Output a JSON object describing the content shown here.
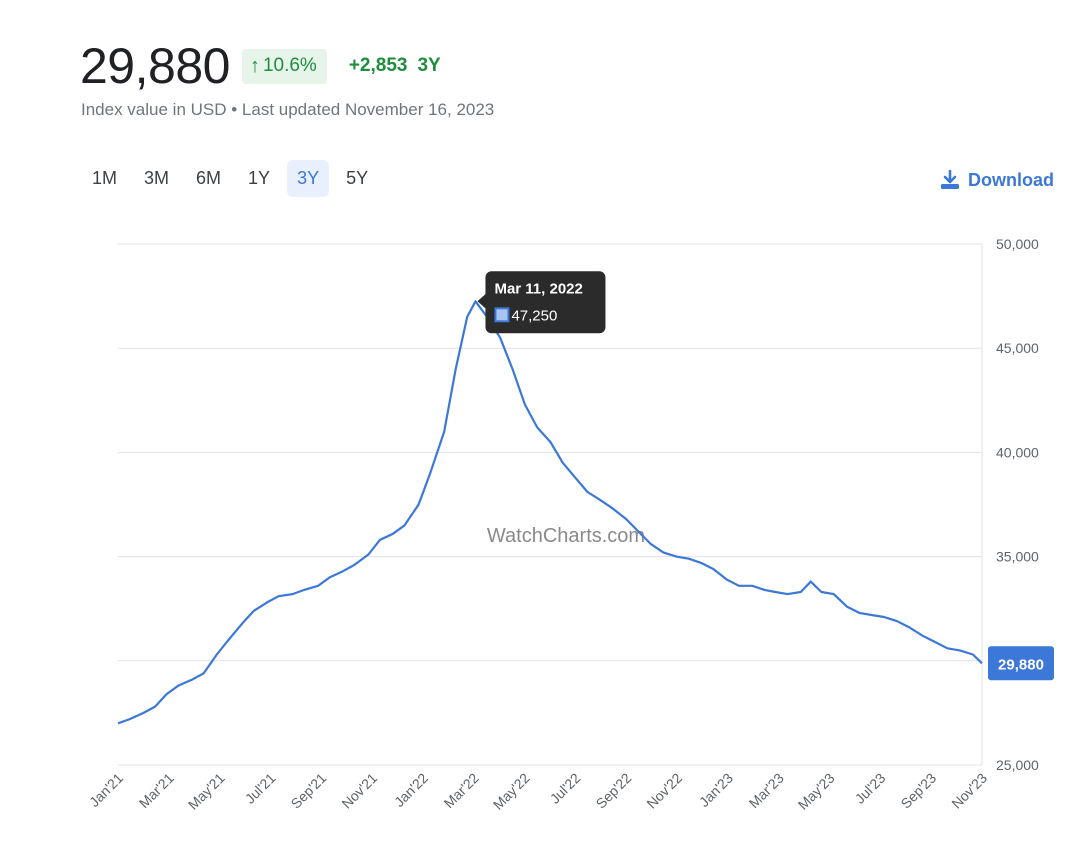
{
  "header": {
    "value": "29,880",
    "change_pct": "10.6%",
    "change_abs": "+2,853",
    "period": "3Y",
    "subtitle": "Index value in USD • Last updated November 16, 2023"
  },
  "ranges": [
    {
      "label": "1M",
      "active": false
    },
    {
      "label": "3M",
      "active": false
    },
    {
      "label": "6M",
      "active": false
    },
    {
      "label": "1Y",
      "active": false
    },
    {
      "label": "3Y",
      "active": true
    },
    {
      "label": "5Y",
      "active": false
    }
  ],
  "download_label": "Download",
  "icons": {
    "up": "arrow-up-icon",
    "download": "download-icon"
  },
  "colors": {
    "line": "#3c78d8",
    "positive": "#1e8e3e",
    "positive_bg": "#e6f4ea",
    "tooltip_bg": "#2b2b2b"
  },
  "watermark": "WatchCharts.com",
  "tooltip": {
    "date": "Mar 11, 2022",
    "value": "47,250"
  },
  "current_label": "29,880",
  "chart_data": {
    "type": "line",
    "title": "",
    "xlabel": "",
    "ylabel": "",
    "ylim": [
      25000,
      50000
    ],
    "yticks": [
      "25,000",
      "35,000",
      "40,000",
      "45,000",
      "50,000"
    ],
    "ytick_values": [
      25000,
      35000,
      40000,
      45000,
      50000
    ],
    "gridline_values": [
      25000,
      30000,
      35000,
      40000,
      45000,
      50000
    ],
    "xticks": [
      "Jan'21",
      "Mar'21",
      "May'21",
      "Jul'21",
      "Sep'21",
      "Nov'21",
      "Jan'22",
      "Mar'22",
      "May'22",
      "Jul'22",
      "Sep'22",
      "Nov'22",
      "Jan'23",
      "Mar'23",
      "May'23",
      "Jul'23",
      "Sep'23",
      "Nov'23"
    ],
    "grid": true,
    "series": [
      {
        "values": [
          [
            "2021-01-01",
            27000
          ],
          [
            "2021-01-15",
            27200
          ],
          [
            "2021-02-01",
            27500
          ],
          [
            "2021-02-15",
            27800
          ],
          [
            "2021-03-01",
            28400
          ],
          [
            "2021-03-15",
            28800
          ],
          [
            "2021-04-01",
            29100
          ],
          [
            "2021-04-15",
            29400
          ],
          [
            "2021-05-01",
            30300
          ],
          [
            "2021-05-15",
            31000
          ],
          [
            "2021-06-01",
            31800
          ],
          [
            "2021-06-15",
            32400
          ],
          [
            "2021-07-01",
            32800
          ],
          [
            "2021-07-15",
            33100
          ],
          [
            "2021-08-01",
            33200
          ],
          [
            "2021-08-15",
            33400
          ],
          [
            "2021-09-01",
            33600
          ],
          [
            "2021-09-15",
            34000
          ],
          [
            "2021-10-01",
            34300
          ],
          [
            "2021-10-15",
            34600
          ],
          [
            "2021-11-01",
            35100
          ],
          [
            "2021-11-15",
            35800
          ],
          [
            "2021-12-01",
            36100
          ],
          [
            "2021-12-15",
            36500
          ],
          [
            "2022-01-01",
            37500
          ],
          [
            "2022-01-15",
            39000
          ],
          [
            "2022-02-01",
            41000
          ],
          [
            "2022-02-15",
            44000
          ],
          [
            "2022-03-01",
            46500
          ],
          [
            "2022-03-11",
            47250
          ],
          [
            "2022-03-25",
            46500
          ],
          [
            "2022-04-10",
            45500
          ],
          [
            "2022-04-25",
            44000
          ],
          [
            "2022-05-10",
            42300
          ],
          [
            "2022-05-25",
            41200
          ],
          [
            "2022-06-10",
            40500
          ],
          [
            "2022-06-25",
            39500
          ],
          [
            "2022-07-10",
            38800
          ],
          [
            "2022-07-25",
            38100
          ],
          [
            "2022-08-10",
            37700
          ],
          [
            "2022-08-25",
            37300
          ],
          [
            "2022-09-10",
            36800
          ],
          [
            "2022-09-25",
            36200
          ],
          [
            "2022-10-10",
            35600
          ],
          [
            "2022-10-25",
            35200
          ],
          [
            "2022-11-10",
            35000
          ],
          [
            "2022-11-25",
            34900
          ],
          [
            "2022-12-10",
            34700
          ],
          [
            "2022-12-25",
            34400
          ],
          [
            "2023-01-10",
            33900
          ],
          [
            "2023-01-25",
            33600
          ],
          [
            "2023-02-10",
            33600
          ],
          [
            "2023-02-25",
            33400
          ],
          [
            "2023-03-10",
            33300
          ],
          [
            "2023-03-25",
            33200
          ],
          [
            "2023-04-10",
            33300
          ],
          [
            "2023-04-22",
            33800
          ],
          [
            "2023-05-05",
            33300
          ],
          [
            "2023-05-20",
            33200
          ],
          [
            "2023-06-05",
            32600
          ],
          [
            "2023-06-20",
            32300
          ],
          [
            "2023-07-05",
            32200
          ],
          [
            "2023-07-20",
            32100
          ],
          [
            "2023-08-05",
            31900
          ],
          [
            "2023-08-20",
            31600
          ],
          [
            "2023-09-05",
            31200
          ],
          [
            "2023-09-20",
            30900
          ],
          [
            "2023-10-05",
            30600
          ],
          [
            "2023-10-20",
            30500
          ],
          [
            "2023-11-05",
            30300
          ],
          [
            "2023-11-16",
            29880
          ]
        ]
      }
    ]
  }
}
